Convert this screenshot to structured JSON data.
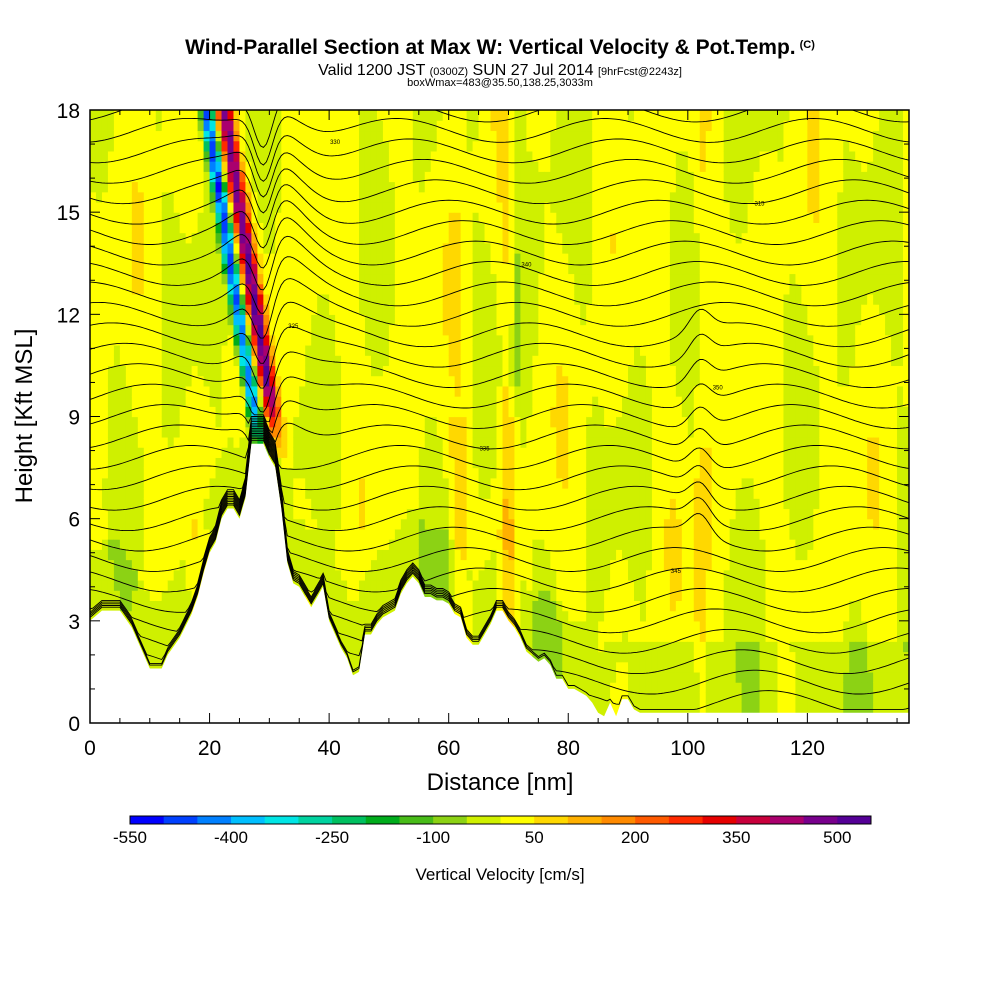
{
  "chart_data": {
    "type": "heatmap",
    "title": "Wind-Parallel Section at Max W: Vertical Velocity & Pot.Temp.",
    "title_mark": "(C)",
    "subtitle_parts": [
      "Valid 1200 JST",
      "(0300Z)",
      "SUN 27 Jul 2014",
      "[9hrFcst@2243z]"
    ],
    "box_line": "boxWmax=483@35.50,138.25,3033m",
    "xlabel": "Distance [nm]",
    "ylabel": "Height [Kft MSL]",
    "xlim": [
      0,
      137
    ],
    "ylim": [
      0,
      18
    ],
    "x_ticks": [
      "0",
      "20",
      "40",
      "60",
      "80",
      "100",
      "120"
    ],
    "y_ticks": [
      "0",
      "3",
      "6",
      "9",
      "12",
      "15",
      "18"
    ],
    "grid": false,
    "colorbar": {
      "label": "Vertical Velocity [cm/s]",
      "tick_labels": [
        "-550",
        "-400",
        "-250",
        "-100",
        "50",
        "200",
        "350",
        "500"
      ],
      "colors": [
        "#0000ff",
        "#0040ff",
        "#0080ff",
        "#00bfff",
        "#00e5e5",
        "#00d3a0",
        "#00c060",
        "#00ac1c",
        "#48bc18",
        "#8cd214",
        "#cff000",
        "#ffff00",
        "#ffd800",
        "#ffb000",
        "#ff8a00",
        "#ff5a00",
        "#ff2a00",
        "#e60000",
        "#c8003c",
        "#aa006e",
        "#78008c",
        "#550096"
      ]
    },
    "terrain_kft": [
      [
        0,
        3.0
      ],
      [
        2,
        3.3
      ],
      [
        5,
        3.3
      ],
      [
        7,
        2.8
      ],
      [
        9,
        2.0
      ],
      [
        10,
        1.6
      ],
      [
        12,
        1.6
      ],
      [
        13,
        2.0
      ],
      [
        15,
        2.5
      ],
      [
        17,
        3.2
      ],
      [
        18,
        3.7
      ],
      [
        19,
        4.4
      ],
      [
        20,
        5.0
      ],
      [
        21,
        5.3
      ],
      [
        22,
        6.0
      ],
      [
        23,
        6.3
      ],
      [
        24,
        6.3
      ],
      [
        25,
        6.0
      ],
      [
        26,
        6.6
      ],
      [
        27,
        8.2
      ],
      [
        29,
        8.2
      ],
      [
        30,
        7.8
      ],
      [
        31,
        7.5
      ],
      [
        32,
        6.3
      ],
      [
        33,
        4.7
      ],
      [
        34,
        4.1
      ],
      [
        35,
        4.0
      ],
      [
        36,
        3.7
      ],
      [
        37,
        3.4
      ],
      [
        38,
        3.7
      ],
      [
        39,
        4.0
      ],
      [
        40,
        3.0
      ],
      [
        41,
        2.6
      ],
      [
        42,
        2.2
      ],
      [
        43,
        1.9
      ],
      [
        44,
        1.4
      ],
      [
        45,
        1.5
      ],
      [
        46,
        2.6
      ],
      [
        47,
        2.6
      ],
      [
        48,
        2.9
      ],
      [
        49,
        3.1
      ],
      [
        50,
        3.2
      ],
      [
        51,
        3.3
      ],
      [
        52,
        3.8
      ],
      [
        53,
        4.1
      ],
      [
        54,
        4.3
      ],
      [
        55,
        4.1
      ],
      [
        56,
        3.7
      ],
      [
        57,
        3.7
      ],
      [
        58,
        3.6
      ],
      [
        59,
        3.6
      ],
      [
        60,
        3.5
      ],
      [
        61,
        3.2
      ],
      [
        62,
        3.1
      ],
      [
        63,
        2.5
      ],
      [
        64,
        2.3
      ],
      [
        65,
        2.3
      ],
      [
        66,
        2.6
      ],
      [
        67,
        2.9
      ],
      [
        68,
        3.3
      ],
      [
        69,
        3.3
      ],
      [
        70,
        3.0
      ],
      [
        71,
        2.8
      ],
      [
        72,
        2.5
      ],
      [
        73,
        2.1
      ],
      [
        75,
        1.8
      ],
      [
        76,
        1.9
      ],
      [
        77,
        1.7
      ],
      [
        78,
        1.3
      ],
      [
        79,
        1.3
      ],
      [
        80,
        1.0
      ],
      [
        81,
        1.0
      ],
      [
        83,
        0.8
      ],
      [
        84,
        0.6
      ],
      [
        85,
        0.3
      ],
      [
        86,
        0.2
      ],
      [
        87,
        0.6
      ],
      [
        88,
        0.2
      ],
      [
        89,
        0.7
      ],
      [
        90,
        0.7
      ],
      [
        91,
        0.4
      ],
      [
        92,
        0.3
      ],
      [
        95,
        0.3
      ],
      [
        137,
        0.3
      ]
    ],
    "contour_labels": [
      "315",
      "320",
      "325",
      "330",
      "335",
      "340",
      "345",
      "350"
    ]
  }
}
